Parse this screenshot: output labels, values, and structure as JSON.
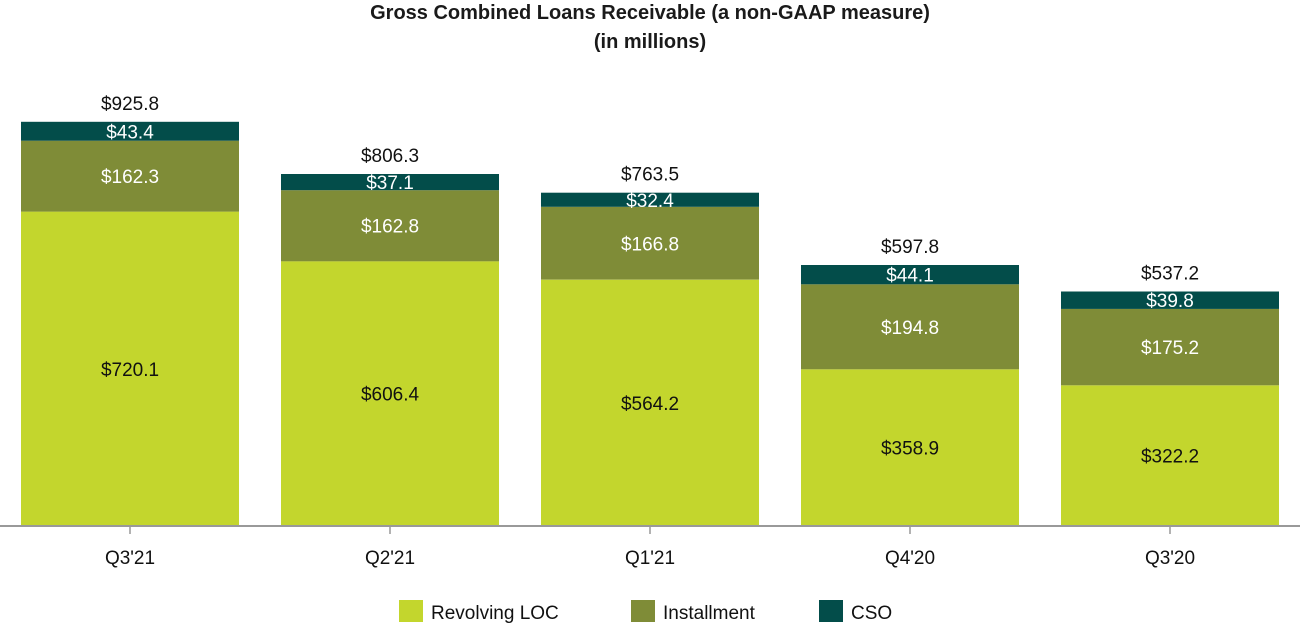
{
  "chart_data": {
    "type": "bar",
    "stacked": true,
    "title": "Gross Combined Loans Receivable (a non-GAAP measure)",
    "subtitle": "(in millions)",
    "categories": [
      "Q3'21",
      "Q2'21",
      "Q1'21",
      "Q4'20",
      "Q3'20"
    ],
    "series": [
      {
        "name": "Revolving LOC",
        "color": "#c3d62d",
        "labels": [
          "$720.1",
          "$606.4",
          "$564.2",
          "$358.9",
          "$322.2"
        ],
        "values": [
          720.1,
          606.4,
          564.2,
          358.9,
          322.2
        ],
        "label_color": "#111111"
      },
      {
        "name": "Installment",
        "color": "#7f8c37",
        "labels": [
          "$162.3",
          "$162.8",
          "$166.8",
          "$194.8",
          "$175.2"
        ],
        "values": [
          162.3,
          162.8,
          166.8,
          194.8,
          175.2
        ],
        "label_color": "#ffffff"
      },
      {
        "name": "CSO",
        "color": "#034d4a",
        "labels": [
          "$43.4",
          "$37.1",
          "$32.4",
          "$44.1",
          "$39.8"
        ],
        "values": [
          43.4,
          37.1,
          32.4,
          44.1,
          39.8
        ],
        "label_color": "#ffffff"
      }
    ],
    "totals": [
      925.8,
      806.3,
      763.5,
      597.8,
      537.2
    ],
    "total_labels": [
      "$925.8",
      "$806.3",
      "$763.5",
      "$597.8",
      "$537.2"
    ],
    "ylim": [
      0,
      1000
    ],
    "xlabel": "",
    "ylabel": "",
    "grid": false,
    "legend": "bottom-center",
    "axis_color": "#999999"
  }
}
